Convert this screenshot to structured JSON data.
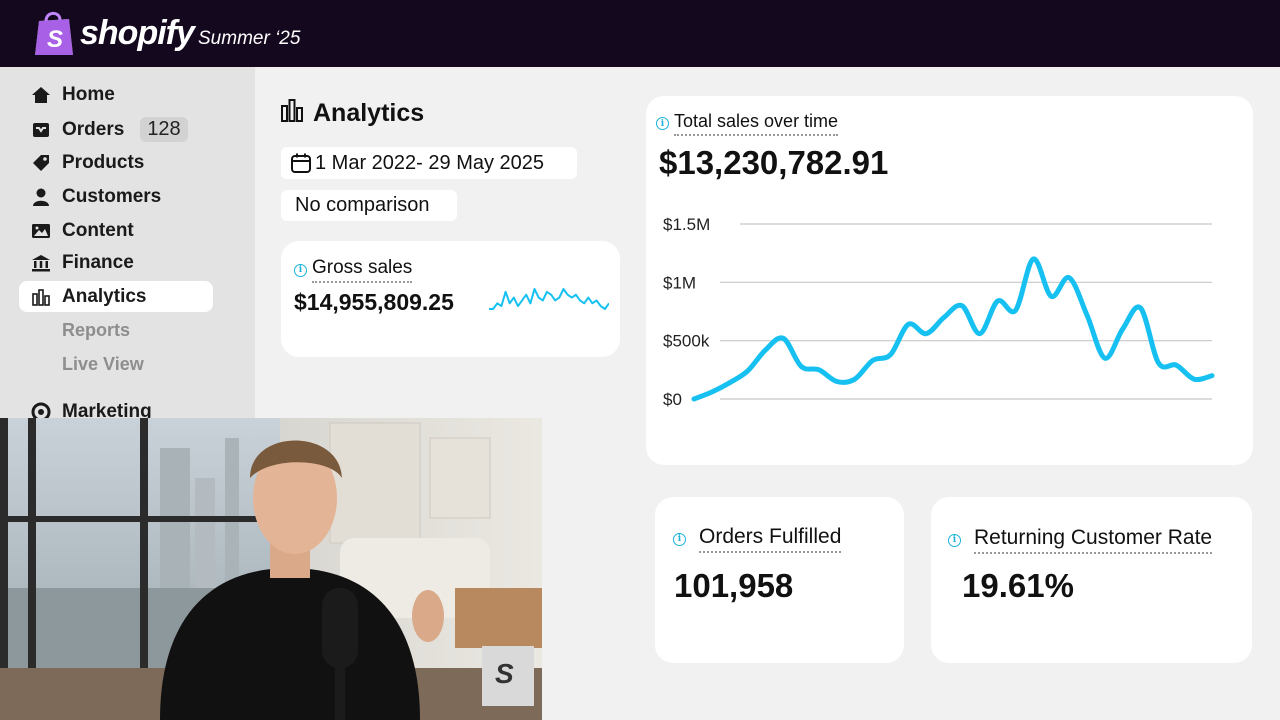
{
  "topbar": {
    "brand": "shopify",
    "edition": "Summer ‘25"
  },
  "sidebar": {
    "items": [
      {
        "label": "Home",
        "icon": "home-icon"
      },
      {
        "label": "Orders",
        "icon": "inbox-icon",
        "badge": "128"
      },
      {
        "label": "Products",
        "icon": "tag-icon"
      },
      {
        "label": "Customers",
        "icon": "person-icon"
      },
      {
        "label": "Content",
        "icon": "image-icon"
      },
      {
        "label": "Finance",
        "icon": "bank-icon"
      },
      {
        "label": "Analytics",
        "icon": "bar-chart-icon",
        "active": true
      }
    ],
    "sub_items": [
      "Reports",
      "Live View"
    ],
    "marketing": {
      "label": "Marketing",
      "icon": "target-icon"
    }
  },
  "main": {
    "title": "Analytics",
    "date_range": "1 Mar 2022- 29 May 2025",
    "comparison": "No comparison"
  },
  "gross_sales": {
    "label": "Gross sales",
    "value": "$14,955,809.25"
  },
  "total_sales": {
    "label": "Total sales over time",
    "value": "$13,230,782.91"
  },
  "orders_fulfilled": {
    "label": "Orders Fulfilled",
    "value": "101,958"
  },
  "returning_rate": {
    "label": "Returning Customer Rate",
    "value": "19.61%"
  },
  "colors": {
    "accent": "#16c0f0",
    "topbar": "#14081f"
  },
  "chart_data": {
    "type": "line",
    "title": "Total sales over time",
    "yticks": [
      "$1.5M",
      "$1M",
      "$500k",
      "$0"
    ],
    "ylim": [
      0,
      1500000
    ],
    "grid": true,
    "series": [
      {
        "values": [
          0,
          60000,
          140000,
          240000,
          420000,
          520000,
          280000,
          250000,
          150000,
          170000,
          330000,
          380000,
          640000,
          560000,
          700000,
          800000,
          560000,
          840000,
          760000,
          1200000,
          880000,
          1040000,
          720000,
          350000,
          600000,
          780000,
          310000,
          290000,
          170000,
          200000
        ]
      }
    ]
  },
  "sparkline": {
    "values": [
      3,
      3,
      5,
      4,
      9,
      5,
      7,
      4,
      6,
      8,
      5,
      10,
      7,
      6,
      9,
      8,
      6,
      7,
      10,
      8,
      7,
      8,
      6,
      5,
      7,
      5,
      6,
      4,
      3,
      5
    ]
  },
  "webcam": {
    "description": ""
  }
}
